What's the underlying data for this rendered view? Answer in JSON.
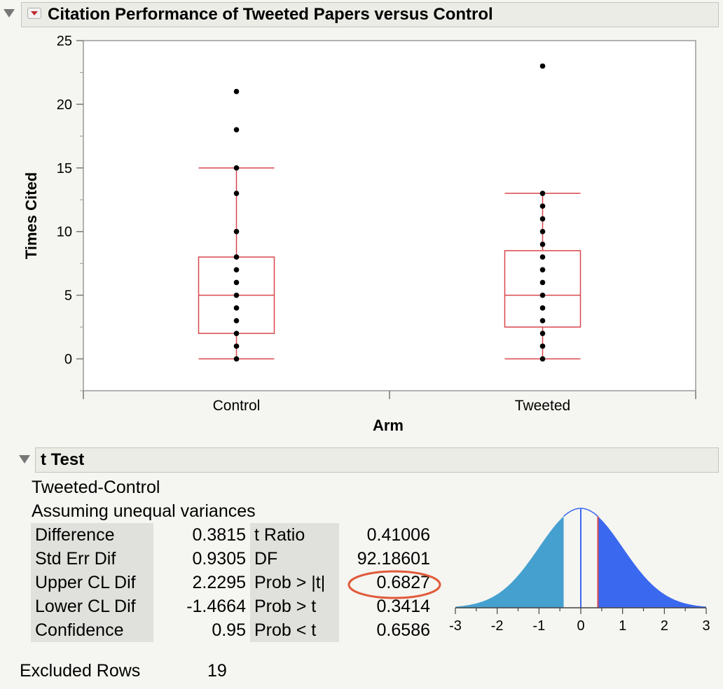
{
  "chart_section": {
    "title": "Citation Performance of Tweeted Papers versus Control"
  },
  "chart_data": {
    "type": "boxplot",
    "xlabel": "Arm",
    "ylabel": "Times Cited",
    "ylim": [
      -2.5,
      25
    ],
    "yticks": [
      0,
      5,
      10,
      15,
      20,
      25
    ],
    "categories": [
      "Control",
      "Tweeted"
    ],
    "boxes": [
      {
        "name": "Control",
        "q1": 2,
        "median": 5,
        "q3": 8,
        "whisker_low": 0,
        "whisker_high": 15,
        "points": [
          0,
          1,
          2,
          3,
          4,
          5,
          6,
          7,
          8,
          10,
          13,
          15,
          18,
          21
        ]
      },
      {
        "name": "Tweeted",
        "q1": 2.5,
        "median": 5,
        "q3": 8.5,
        "whisker_low": 0,
        "whisker_high": 13,
        "points": [
          0,
          1,
          2,
          3,
          4,
          5,
          6,
          7,
          8,
          9,
          10,
          11,
          12,
          13,
          23
        ]
      }
    ],
    "colors": {
      "box": "#d9464d",
      "points": "#000000"
    }
  },
  "ttest": {
    "title": "t Test",
    "comparison": "Tweeted-Control",
    "assumption": "Assuming unequal variances",
    "left_rows": [
      {
        "label": "Difference",
        "value": "0.3815"
      },
      {
        "label": "Std Err Dif",
        "value": "0.9305"
      },
      {
        "label": "Upper CL Dif",
        "value": "2.2295"
      },
      {
        "label": "Lower CL Dif",
        "value": "-1.4664"
      },
      {
        "label": "Confidence",
        "value": "0.95"
      }
    ],
    "right_rows": [
      {
        "label": "t Ratio",
        "value": "0.41006"
      },
      {
        "label": "DF",
        "value": "92.18601"
      },
      {
        "label": "Prob > |t|",
        "value": "0.6827"
      },
      {
        "label": "Prob > t",
        "value": "0.3414"
      },
      {
        "label": "Prob < t",
        "value": "0.6586"
      }
    ],
    "highlight_color": "#e05a3a"
  },
  "t_distribution": {
    "t_ratio": 0.41006,
    "xticks": [
      "-3",
      "-2",
      "-1",
      "0",
      "1",
      "2",
      "3"
    ],
    "xlim": [
      -3,
      3
    ],
    "colors": {
      "left_tail": "#45a0cf",
      "right_tail": "#3a68ef",
      "center_line": "#3a68ef",
      "t_line": "#d9464d"
    }
  },
  "excluded": {
    "label": "Excluded Rows",
    "value": "19"
  }
}
